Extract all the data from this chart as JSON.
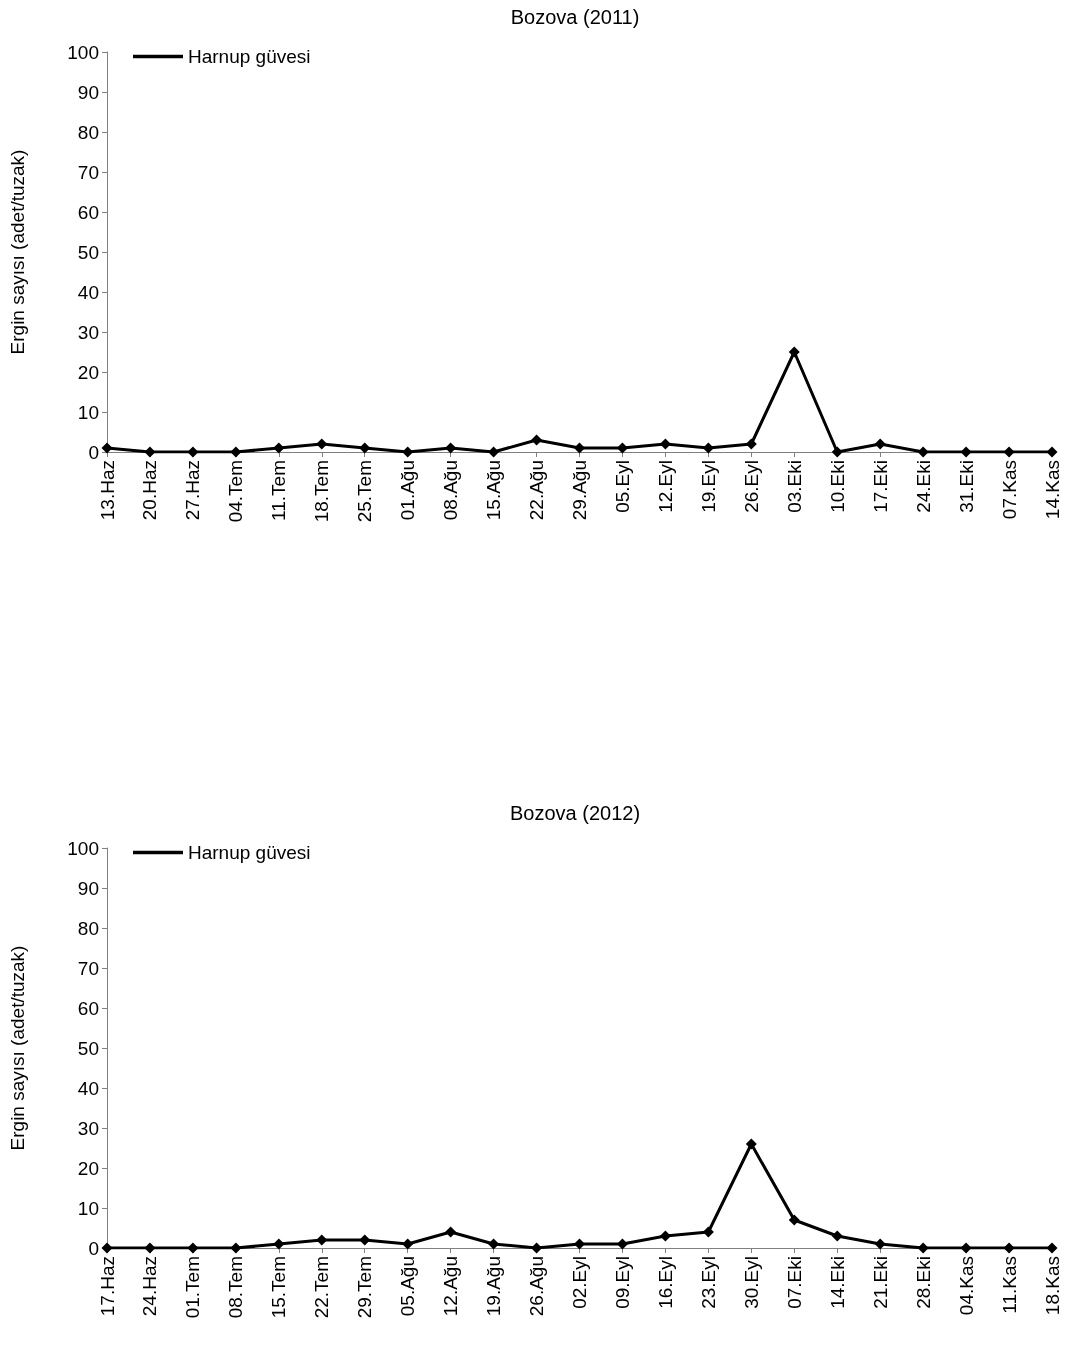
{
  "chart_data": [
    {
      "type": "line",
      "title": "Bozova (2011)",
      "ylabel": "Ergin sayısı (adet/tuzak)",
      "categories": [
        "13.Haz",
        "20.Haz",
        "27.Haz",
        "04.Tem",
        "11.Tem",
        "18.Tem",
        "25.Tem",
        "01.Ağu",
        "08.Ağu",
        "15.Ağu",
        "22.Ağu",
        "29.Ağu",
        "05.Eyl",
        "12.Eyl",
        "19.Eyl",
        "26.Eyl",
        "03.Eki",
        "10.Eki",
        "17.Eki",
        "24.Eki",
        "31.Eki",
        "07.Kas",
        "14.Kas"
      ],
      "series": [
        {
          "name": "Harnup güvesi",
          "color": "#000000",
          "values": [
            1,
            0,
            0,
            0,
            1,
            2,
            1,
            0,
            1,
            0,
            3,
            1,
            1,
            2,
            1,
            2,
            25,
            0,
            2,
            0,
            0,
            0,
            0
          ]
        }
      ],
      "ylim": [
        0,
        100
      ],
      "yticks": [
        0,
        10,
        20,
        30,
        40,
        50,
        60,
        70,
        80,
        90,
        100
      ],
      "grid": false,
      "legend": "top left",
      "marker": "diamond",
      "line_style": "solid"
    },
    {
      "type": "line",
      "title": "Bozova (2012)",
      "ylabel": "Ergin sayısı (adet/tuzak)",
      "categories": [
        "17.Haz",
        "24.Haz",
        "01.Tem",
        "08.Tem",
        "15.Tem",
        "22.Tem",
        "29.Tem",
        "05.Ağu",
        "12.Ağu",
        "19.Ağu",
        "26.Ağu",
        "02.Eyl",
        "09.Eyl",
        "16.Eyl",
        "23.Eyl",
        "30.Eyl",
        "07.Eki",
        "14.Eki",
        "21.Eki",
        "28.Eki",
        "04.Kas",
        "11.Kas",
        "18.Kas"
      ],
      "series": [
        {
          "name": "Harnup güvesi",
          "color": "#000000",
          "values": [
            0,
            0,
            0,
            0,
            1,
            2,
            2,
            1,
            4,
            1,
            0,
            1,
            1,
            3,
            4,
            26,
            7,
            3,
            1,
            0,
            0,
            0,
            0
          ]
        }
      ],
      "ylim": [
        0,
        100
      ],
      "yticks": [
        0,
        10,
        20,
        30,
        40,
        50,
        60,
        70,
        80,
        90,
        100
      ],
      "grid": false,
      "legend": "top left",
      "marker": "diamond",
      "line_style": "solid"
    }
  ]
}
